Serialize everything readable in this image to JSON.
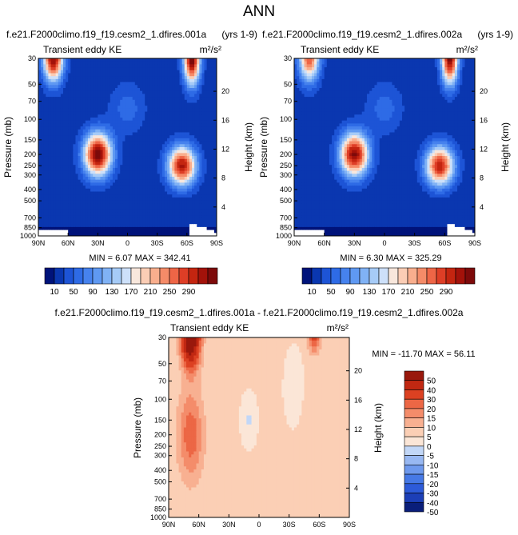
{
  "figure_title": "ANN",
  "palettes": {
    "full": [
      "#00137a",
      "#0a37b0",
      "#1d54d6",
      "#2e6be6",
      "#4682ee",
      "#5f99f2",
      "#80b2f5",
      "#a6cbf7",
      "#cde0f9",
      "#f8e7dc",
      "#fbcdb5",
      "#f9ae8d",
      "#f58b68",
      "#ee6546",
      "#de3e26",
      "#c42510",
      "#a3120a",
      "#7d0a0a"
    ],
    "diff": [
      "#0a1e7a",
      "#1c3fb7",
      "#2d5bd9",
      "#4679e6",
      "#6e99ed",
      "#98b8f2",
      "#c2d7f7",
      "#fbe6d7",
      "#fbcfb5",
      "#f8b091",
      "#f48c6a",
      "#ec6745",
      "#dc4122",
      "#c12812",
      "#99180c"
    ]
  },
  "chart_data": [
    {
      "type": "heatmap",
      "title_left": "f.e21.F2000climo.f19_f19.cesm2_1.dfires.001a",
      "title_right": "(yrs 1-9)",
      "subtitle": "Transient eddy KE",
      "units": "m²/s²",
      "ylabel": "Pressure (mb)",
      "ylabel_right": "Height (km)",
      "x_ticks": [
        "90N",
        "60N",
        "30N",
        "0",
        "30S",
        "60S",
        "90S"
      ],
      "y_ticks": [
        "30",
        "50",
        "70",
        "100",
        "150",
        "200",
        "250",
        "300",
        "400",
        "500",
        "700",
        "850",
        "1000"
      ],
      "height_ticks": [
        "20",
        "16",
        "12",
        "8",
        "4"
      ],
      "stats": "MIN = 6.07 MAX = 342.41",
      "min": 6.07,
      "max": 342.41,
      "colorbar_labels": [
        "10",
        "50",
        "90",
        "130",
        "170",
        "210",
        "250",
        "290"
      ],
      "levels": [
        10,
        30,
        50,
        70,
        90,
        110,
        130,
        150,
        170,
        190,
        210,
        230,
        250,
        270,
        290,
        310,
        330
      ],
      "features": [
        {
          "lat": 30,
          "p": 200,
          "value": 335
        },
        {
          "lat": -55,
          "p": 250,
          "value": 300
        },
        {
          "lat": 75,
          "p": 30,
          "value": 320
        },
        {
          "lat": -65,
          "p": 30,
          "value": 342
        }
      ]
    },
    {
      "type": "heatmap",
      "title_left": "f.e21.F2000climo.f19_f19.cesm2_1.dfires.002a",
      "title_right": "(yrs 1-9)",
      "subtitle": "Transient eddy KE",
      "units": "m²/s²",
      "ylabel": "Pressure (mb)",
      "ylabel_right": "Height (km)",
      "x_ticks": [
        "90N",
        "60N",
        "30N",
        "0",
        "30S",
        "60S",
        "90S"
      ],
      "y_ticks": [
        "30",
        "50",
        "70",
        "100",
        "150",
        "200",
        "250",
        "300",
        "400",
        "500",
        "700",
        "850",
        "1000"
      ],
      "height_ticks": [
        "20",
        "16",
        "12",
        "8",
        "4"
      ],
      "stats": "MIN = 6.30 MAX = 325.29",
      "min": 6.3,
      "max": 325.29,
      "colorbar_labels": [
        "10",
        "50",
        "90",
        "130",
        "170",
        "210",
        "250",
        "290"
      ],
      "levels": [
        10,
        30,
        50,
        70,
        90,
        110,
        130,
        150,
        170,
        190,
        210,
        230,
        250,
        270,
        290,
        310,
        330
      ],
      "features": [
        {
          "lat": 30,
          "p": 200,
          "value": 320
        },
        {
          "lat": -55,
          "p": 250,
          "value": 290
        },
        {
          "lat": 75,
          "p": 30,
          "value": 250
        },
        {
          "lat": -65,
          "p": 30,
          "value": 325
        }
      ]
    },
    {
      "type": "heatmap",
      "title": "f.e21.F2000climo.f19_f19.cesm2_1.dfires.001a - f.e21.F2000climo.f19_f19.cesm2_1.dfires.002a",
      "subtitle": "Transient eddy KE",
      "units": "m²/s²",
      "ylabel": "Pressure (mb)",
      "ylabel_right": "Height (km)",
      "x_ticks": [
        "90N",
        "60N",
        "30N",
        "0",
        "30S",
        "60S",
        "90S"
      ],
      "y_ticks": [
        "30",
        "50",
        "70",
        "100",
        "150",
        "200",
        "250",
        "300",
        "400",
        "500",
        "700",
        "850",
        "1000"
      ],
      "height_ticks": [
        "20",
        "16",
        "12",
        "8",
        "4"
      ],
      "stats": "MIN = -11.70 MAX = 56.11",
      "min": -11.7,
      "max": 56.11,
      "colorbar_labels": [
        "50",
        "40",
        "30",
        "20",
        "15",
        "10",
        "5",
        "0",
        "-5",
        "-10",
        "-15",
        "-20",
        "-30",
        "-40",
        "-50"
      ],
      "levels": [
        -50,
        -40,
        -30,
        -20,
        -15,
        -10,
        -5,
        0,
        5,
        10,
        15,
        20,
        30,
        40,
        50
      ],
      "features": [
        {
          "lat": 68,
          "p": 30,
          "value": 56
        },
        {
          "lat": -55,
          "p": 30,
          "value": 20
        },
        {
          "lat": 10,
          "p": 150,
          "value": -6
        }
      ]
    }
  ]
}
